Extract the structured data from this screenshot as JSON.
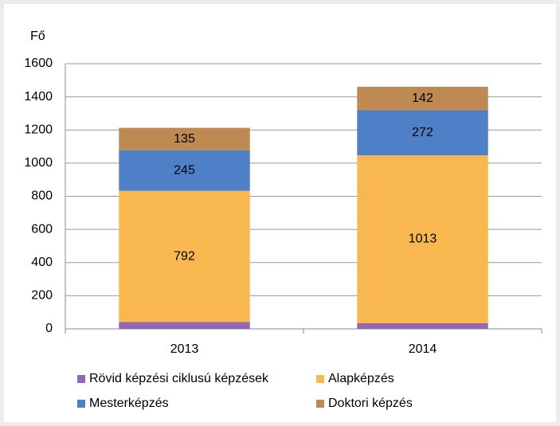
{
  "chart_data": {
    "type": "stacked_bar",
    "y_label": "Fő",
    "categories": [
      "2013",
      "2014"
    ],
    "series": [
      {
        "name": "Rövid képzési ciklusú képzések",
        "color": "#9467b5",
        "values": [
          41,
          34
        ]
      },
      {
        "name": "Alapképzés",
        "color": "#f9b74f",
        "values": [
          792,
          1013
        ]
      },
      {
        "name": "Mesterképzés",
        "color": "#4f7fc6",
        "values": [
          245,
          272
        ]
      },
      {
        "name": "Doktori képzés",
        "color": "#bf8a52",
        "values": [
          135,
          142
        ]
      }
    ],
    "ylim": [
      0,
      1600
    ],
    "yticks": [
      0,
      200,
      400,
      600,
      800,
      1000,
      1200,
      1400,
      1600
    ],
    "grid": true
  }
}
